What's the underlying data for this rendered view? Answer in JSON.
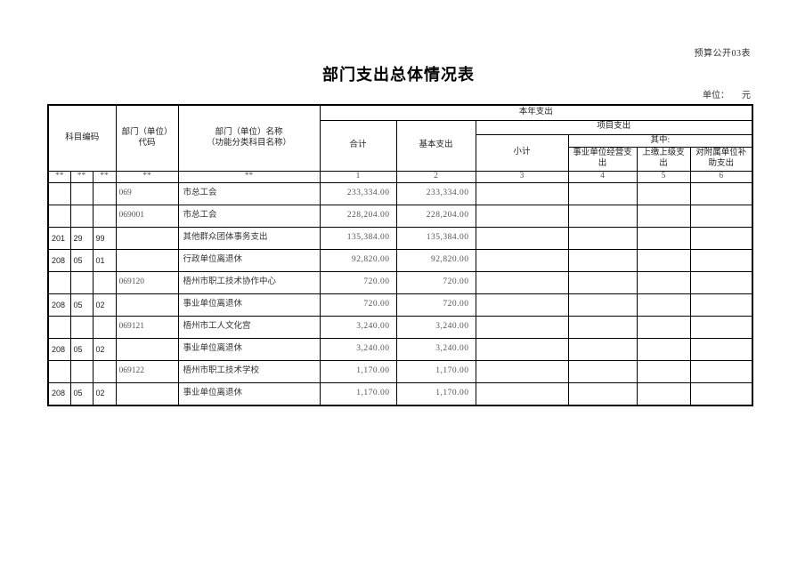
{
  "page": {
    "corner_label": "预算公开03表",
    "title": "部门支出总体情况表",
    "unit_label": "单位：",
    "unit_value": "元"
  },
  "table": {
    "headers": {
      "subject_code": "科目编码",
      "unit_code": "部门（单位）\n代码",
      "unit_name": "部门（单位）名称\n（功能分类科目名称）",
      "current_year": "本年支出",
      "total": "合计",
      "basic": "基本支出",
      "project": "项目支出",
      "subtotal": "小计",
      "among": "其中:",
      "operating": "事业单位经营支出",
      "upper_level": "上缴上级支出",
      "subsidy": "对附属单位补助支出"
    },
    "index_row": [
      "**",
      "**",
      "**",
      "**",
      "**",
      "1",
      "2",
      "3",
      "4",
      "5",
      "6"
    ],
    "rows": [
      {
        "type": "unit",
        "code1": "",
        "code2": "",
        "code3": "",
        "unit_code": "069",
        "name": "市总工会",
        "total": "233,334.00",
        "basic": "233,334.00",
        "subtotal": "",
        "operating": "",
        "upper_level": "",
        "subsidy": ""
      },
      {
        "type": "unit",
        "code1": "",
        "code2": "",
        "code3": "",
        "unit_code": "069001",
        "name": "市总工会",
        "total": "228,204.00",
        "basic": "228,204.00",
        "subtotal": "",
        "operating": "",
        "upper_level": "",
        "subsidy": ""
      },
      {
        "type": "subject",
        "code1": "201",
        "code2": "29",
        "code3": "99",
        "unit_code": "",
        "name": "其他群众团体事务支出",
        "total": "135,384.00",
        "basic": "135,384.00",
        "subtotal": "",
        "operating": "",
        "upper_level": "",
        "subsidy": ""
      },
      {
        "type": "subject",
        "code1": "208",
        "code2": "05",
        "code3": "01",
        "unit_code": "",
        "name": "行政单位离退休",
        "total": "92,820.00",
        "basic": "92,820.00",
        "subtotal": "",
        "operating": "",
        "upper_level": "",
        "subsidy": ""
      },
      {
        "type": "unit",
        "code1": "",
        "code2": "",
        "code3": "",
        "unit_code": "069120",
        "name": "梧州市职工技术协作中心",
        "total": "720.00",
        "basic": "720.00",
        "subtotal": "",
        "operating": "",
        "upper_level": "",
        "subsidy": ""
      },
      {
        "type": "subject",
        "code1": "208",
        "code2": "05",
        "code3": "02",
        "unit_code": "",
        "name": "事业单位离退休",
        "total": "720.00",
        "basic": "720.00",
        "subtotal": "",
        "operating": "",
        "upper_level": "",
        "subsidy": ""
      },
      {
        "type": "unit",
        "code1": "",
        "code2": "",
        "code3": "",
        "unit_code": "069121",
        "name": "梧州市工人文化宫",
        "total": "3,240.00",
        "basic": "3,240.00",
        "subtotal": "",
        "operating": "",
        "upper_level": "",
        "subsidy": ""
      },
      {
        "type": "subject",
        "code1": "208",
        "code2": "05",
        "code3": "02",
        "unit_code": "",
        "name": "事业单位离退休",
        "total": "3,240.00",
        "basic": "3,240.00",
        "subtotal": "",
        "operating": "",
        "upper_level": "",
        "subsidy": ""
      },
      {
        "type": "unit",
        "code1": "",
        "code2": "",
        "code3": "",
        "unit_code": "069122",
        "name": "梧州市职工技术学校",
        "total": "1,170.00",
        "basic": "1,170.00",
        "subtotal": "",
        "operating": "",
        "upper_level": "",
        "subsidy": ""
      },
      {
        "type": "subject",
        "code1": "208",
        "code2": "05",
        "code3": "02",
        "unit_code": "",
        "name": "事业单位离退休",
        "total": "1,170.00",
        "basic": "1,170.00",
        "subtotal": "",
        "operating": "",
        "upper_level": "",
        "subsidy": ""
      }
    ]
  }
}
